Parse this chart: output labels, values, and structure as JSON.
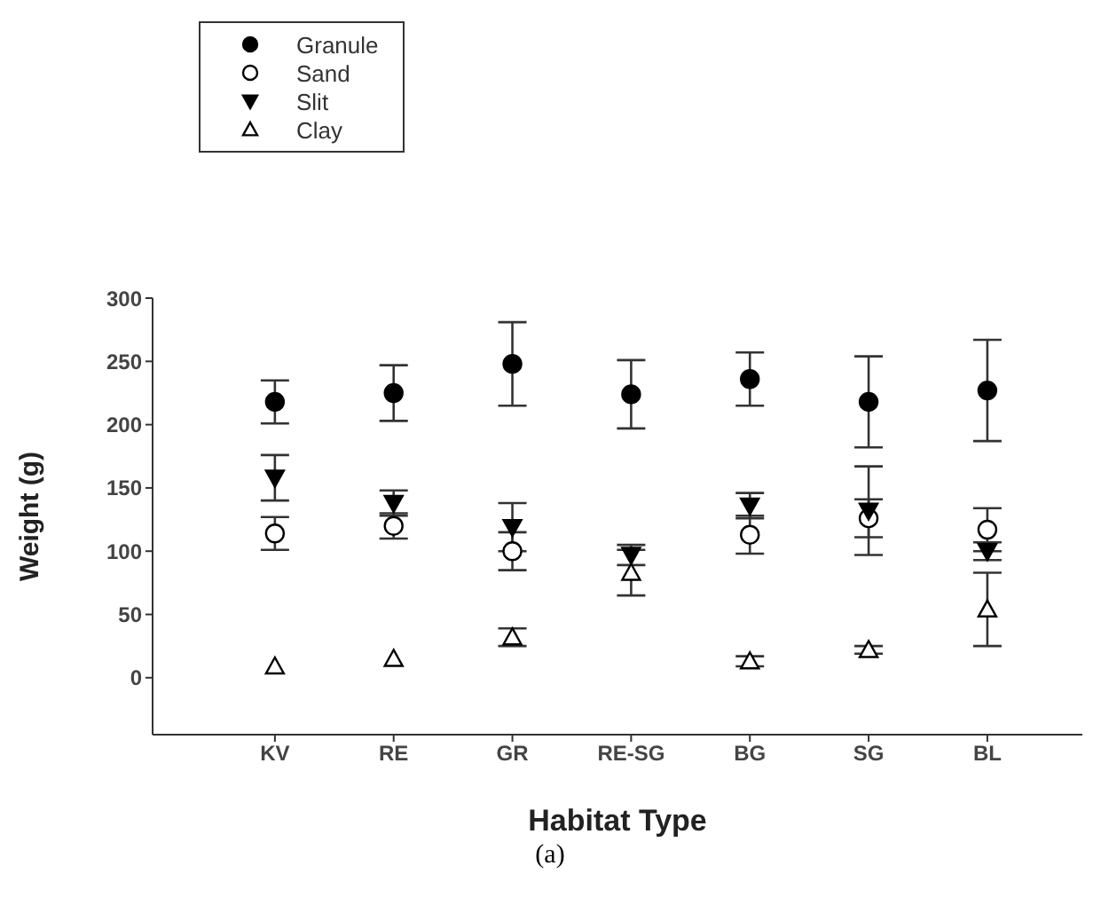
{
  "chart_data": {
    "type": "scatter",
    "xlabel": "Habitat Type",
    "ylabel": "Weight (g)",
    "categories": [
      "KV",
      "RE",
      "GR",
      "RE-SG",
      "BG",
      "SG",
      "BL"
    ],
    "ylim": [
      -45,
      300
    ],
    "yticks": [
      0,
      50,
      100,
      150,
      200,
      250,
      300
    ],
    "legend": "top left",
    "annotations": [
      "(a)"
    ],
    "series": [
      {
        "name": "Granule",
        "color": "#000000",
        "marker": "circle",
        "values": [
          218,
          225,
          248,
          224,
          236,
          218,
          227
        ],
        "errors": [
          17,
          22,
          33,
          27,
          21,
          36,
          40
        ]
      },
      {
        "name": "Sand",
        "color": "#000000",
        "marker": "circle-open",
        "values": [
          114,
          120,
          100,
          null,
          113,
          126,
          117
        ],
        "errors": [
          13,
          10,
          15,
          null,
          15,
          15,
          17
        ]
      },
      {
        "name": "Slit",
        "color": "#000000",
        "marker": "triangle-down",
        "values": [
          158,
          138,
          119,
          97,
          136,
          132,
          100
        ],
        "errors": [
          18,
          10,
          19,
          8,
          10,
          35,
          7
        ]
      },
      {
        "name": "Clay",
        "color": "#000000",
        "marker": "triangle-open",
        "values": [
          9,
          15,
          32,
          83,
          13,
          22,
          54
        ],
        "errors": [
          null,
          null,
          7,
          18,
          4,
          3,
          29
        ]
      }
    ]
  }
}
